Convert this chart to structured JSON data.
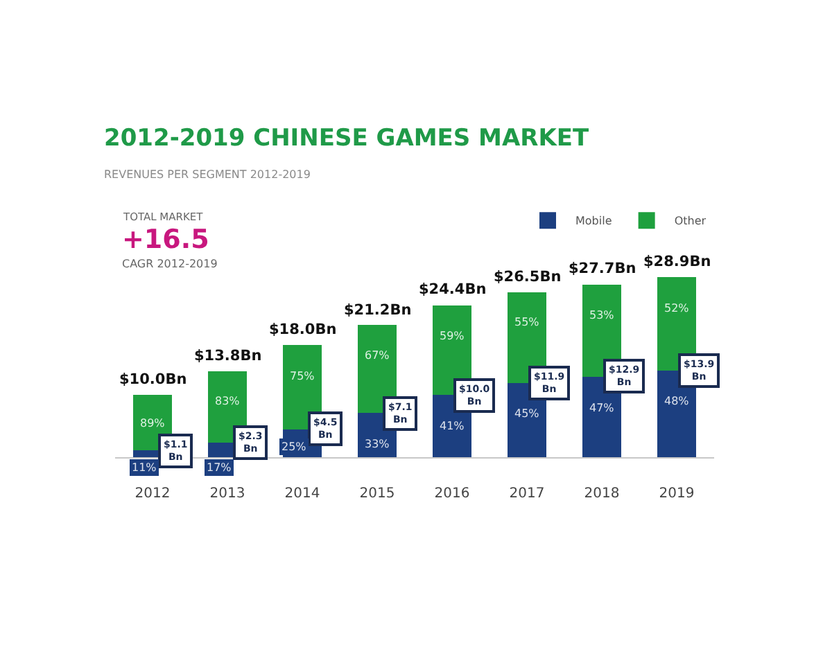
{
  "chart_data": {
    "type": "bar",
    "stacked": true,
    "title": "2012-2019 CHINESE GAMES MARKET",
    "subtitle": "REVENUES PER SEGMENT 2012-2019",
    "categories": [
      "2012",
      "2013",
      "2014",
      "2015",
      "2016",
      "2017",
      "2018",
      "2019"
    ],
    "series": [
      {
        "name": "Mobile",
        "color": "#1c3f80",
        "values": [
          1.1,
          2.3,
          4.5,
          7.1,
          10.0,
          11.9,
          12.9,
          13.9
        ],
        "value_labels": [
          "$1.1\nBn",
          "$2.3\nBn",
          "$4.5\nBn",
          "$7.1\nBn",
          "$10.0\nBn",
          "$11.9\nBn",
          "$12.9\nBn",
          "$13.9\nBn"
        ]
      },
      {
        "name": "Other",
        "color": "#1fa03e",
        "values": [
          8.9,
          11.5,
          13.5,
          14.1,
          14.4,
          14.6,
          14.8,
          15.0
        ]
      }
    ],
    "totals": [
      "$10.0Bn",
      "$13.8Bn",
      "$18.0Bn",
      "$21.2Bn",
      "$24.4Bn",
      "$26.5Bn",
      "$27.7Bn",
      "$28.9Bn"
    ],
    "annotations": [
      "TOTAL MARKET",
      "+16.5",
      "CAGR 2012-2019",
      {
        "text": "11%",
        "x": "2012",
        "y": 1.1
      },
      {
        "text": "17%",
        "x": "2013",
        "y": 2.3
      },
      {
        "text": "25%",
        "x": "2014",
        "y": 4.5
      },
      {
        "text": "33%",
        "x": "2015",
        "y": 7.1
      },
      {
        "text": "41%",
        "x": "2016",
        "y": 10.0
      },
      {
        "text": "45%",
        "x": "2017",
        "y": 11.9
      },
      {
        "text": "47%",
        "x": "2018",
        "y": 12.9
      },
      {
        "text": "48%",
        "x": "2019",
        "y": 13.9
      },
      {
        "text": "89%",
        "x": "2012",
        "y": 10.0
      },
      {
        "text": "83%",
        "x": "2013",
        "y": 13.8
      },
      {
        "text": "75%",
        "x": "2014",
        "y": 18.0
      },
      {
        "text": "67%",
        "x": "2015",
        "y": 21.2
      },
      {
        "text": "59%",
        "x": "2016",
        "y": 24.4
      },
      {
        "text": "55%",
        "x": "2017",
        "y": 26.5
      },
      {
        "text": "53%",
        "x": "2018",
        "y": 27.7
      },
      {
        "text": "52%",
        "x": "2019",
        "y": 28.9
      }
    ],
    "legend": "top right",
    "tick_labels": "x"
  }
}
